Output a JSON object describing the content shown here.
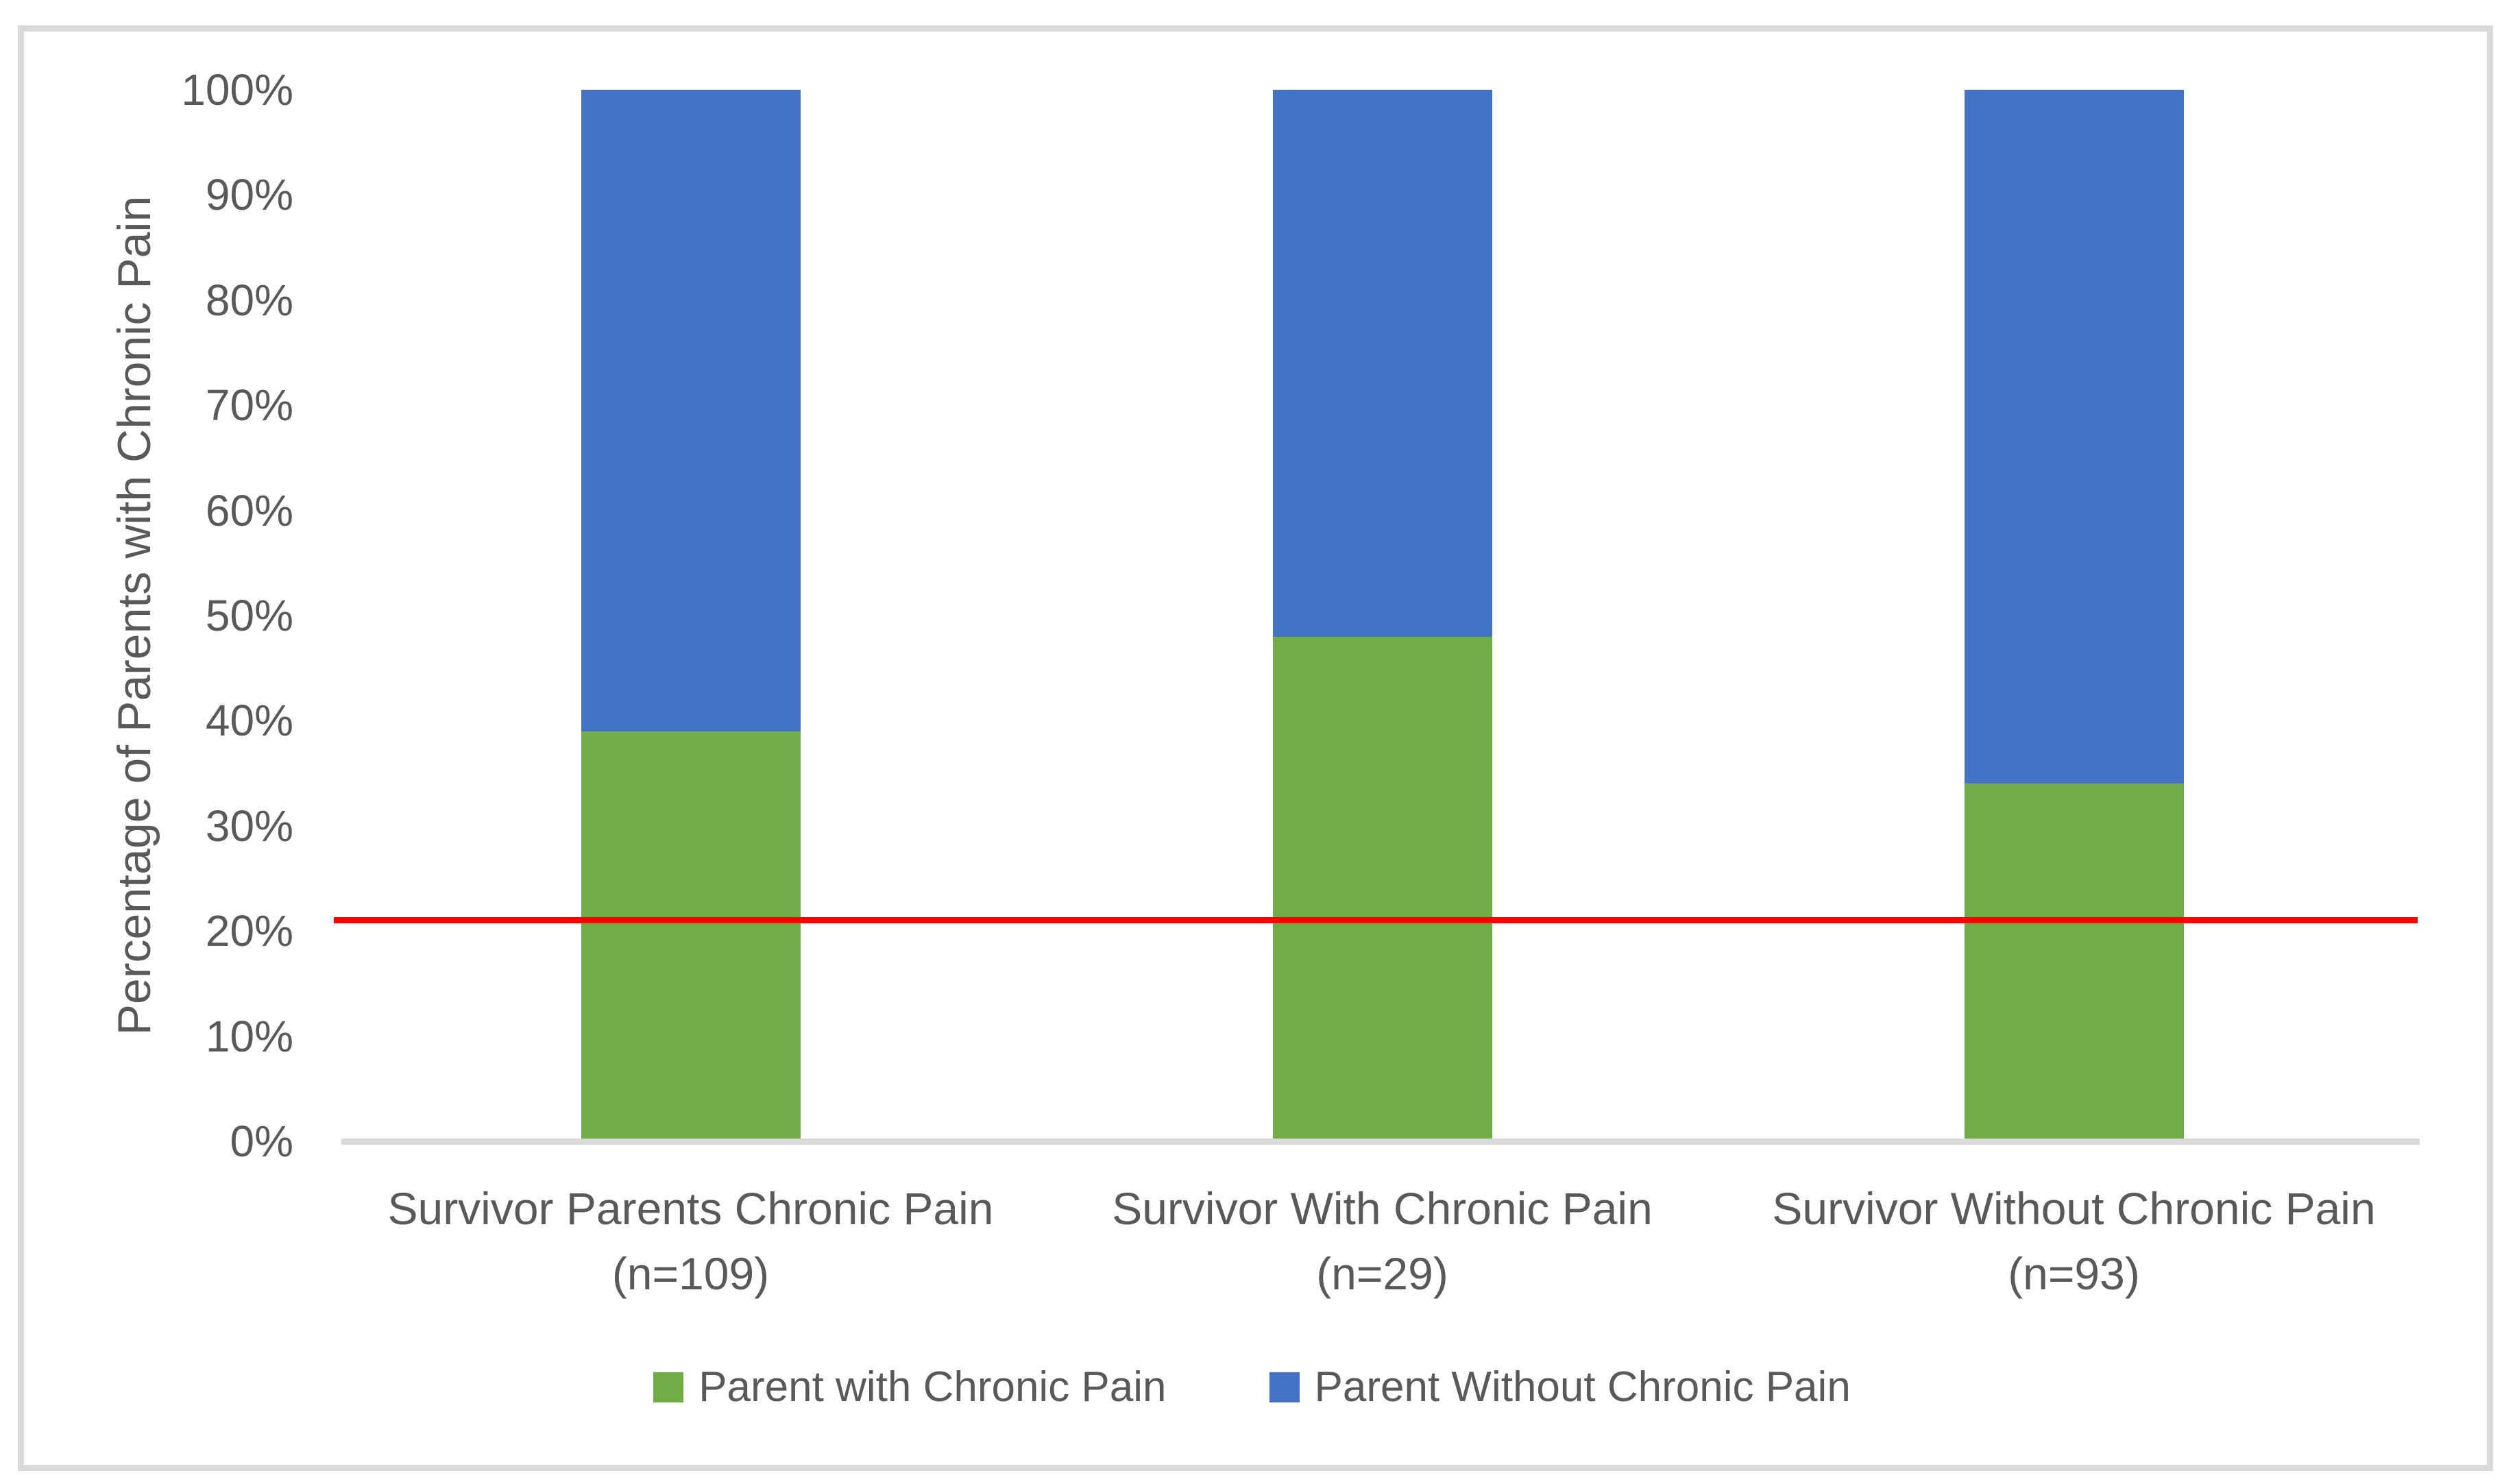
{
  "chart_data": {
    "type": "bar",
    "stacked": true,
    "orientation": "vertical",
    "title": "",
    "xlabel": "",
    "ylabel": "Percentage of Parents with Chronic Pain",
    "ylim": [
      0,
      100
    ],
    "grid": false,
    "legend_position": "bottom",
    "y_ticks": [
      "0%",
      "10%",
      "20%",
      "30%",
      "40%",
      "50%",
      "60%",
      "70%",
      "80%",
      "90%",
      "100%"
    ],
    "y_tick_values": [
      0,
      10,
      20,
      30,
      40,
      50,
      60,
      70,
      80,
      90,
      100
    ],
    "categories": [
      {
        "label": "Survivor Parents Chronic Pain",
        "sub": "(n=109)"
      },
      {
        "label": "Survivor With Chronic Pain",
        "sub": "(n=29)"
      },
      {
        "label": "Survivor Without Chronic Pain",
        "sub": "(n=93)"
      }
    ],
    "series": [
      {
        "name": "Parent with Chronic Pain",
        "color": "#70AD47",
        "values": [
          39,
          48,
          34
        ]
      },
      {
        "name": "Parent Without Chronic Pain",
        "color": "#4472C4",
        "values": [
          61,
          52,
          66
        ]
      }
    ],
    "reference_line": {
      "value": 21,
      "color": "#FF0000"
    }
  },
  "colors": {
    "axis_line": "#D9D9D9",
    "chart_border": "#D9D9D9",
    "text": "#595959",
    "background": "#FFFFFF"
  }
}
